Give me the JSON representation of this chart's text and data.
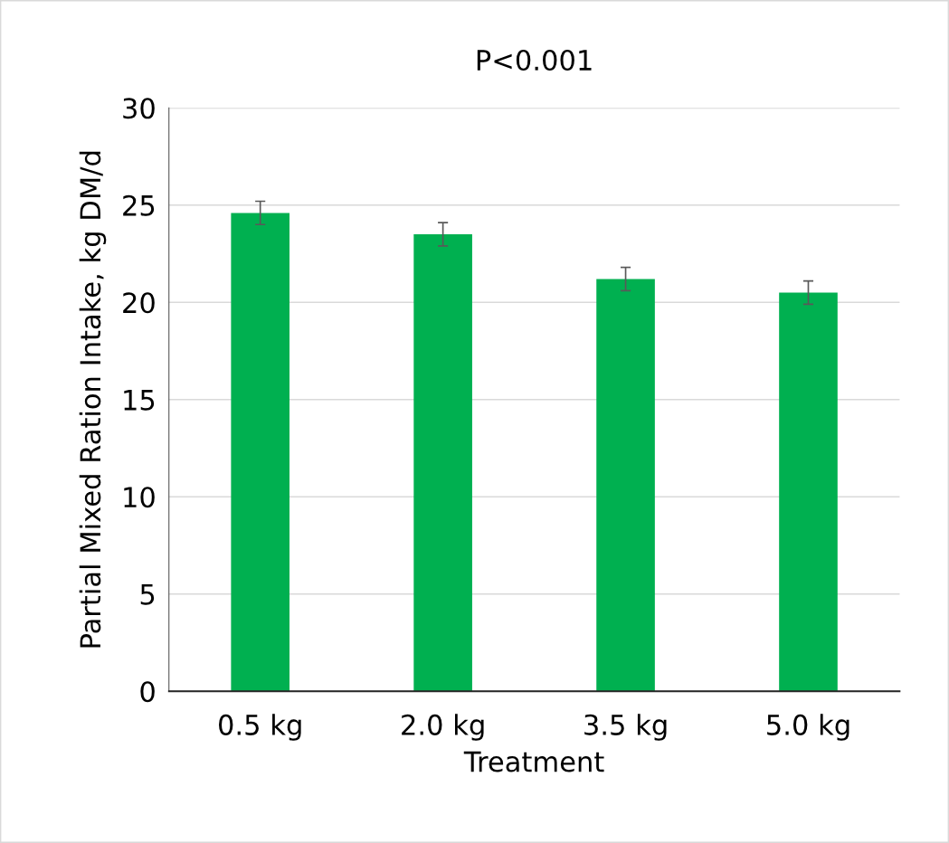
{
  "chart_data": {
    "type": "bar",
    "title": "P<0.001",
    "xlabel": "Treatment",
    "ylabel": "Partial Mixed Ration Intake, kg DM/d",
    "categories": [
      "0.5 kg",
      "2.0 kg",
      "3.5 kg",
      "5.0 kg"
    ],
    "values": [
      24.6,
      23.5,
      21.2,
      20.5
    ],
    "errors": [
      0.6,
      0.6,
      0.6,
      0.6
    ],
    "color": "#00b050",
    "ylim": [
      0,
      30
    ],
    "yticks": [
      0,
      5,
      10,
      15,
      20,
      25,
      30
    ],
    "grid": "y"
  }
}
